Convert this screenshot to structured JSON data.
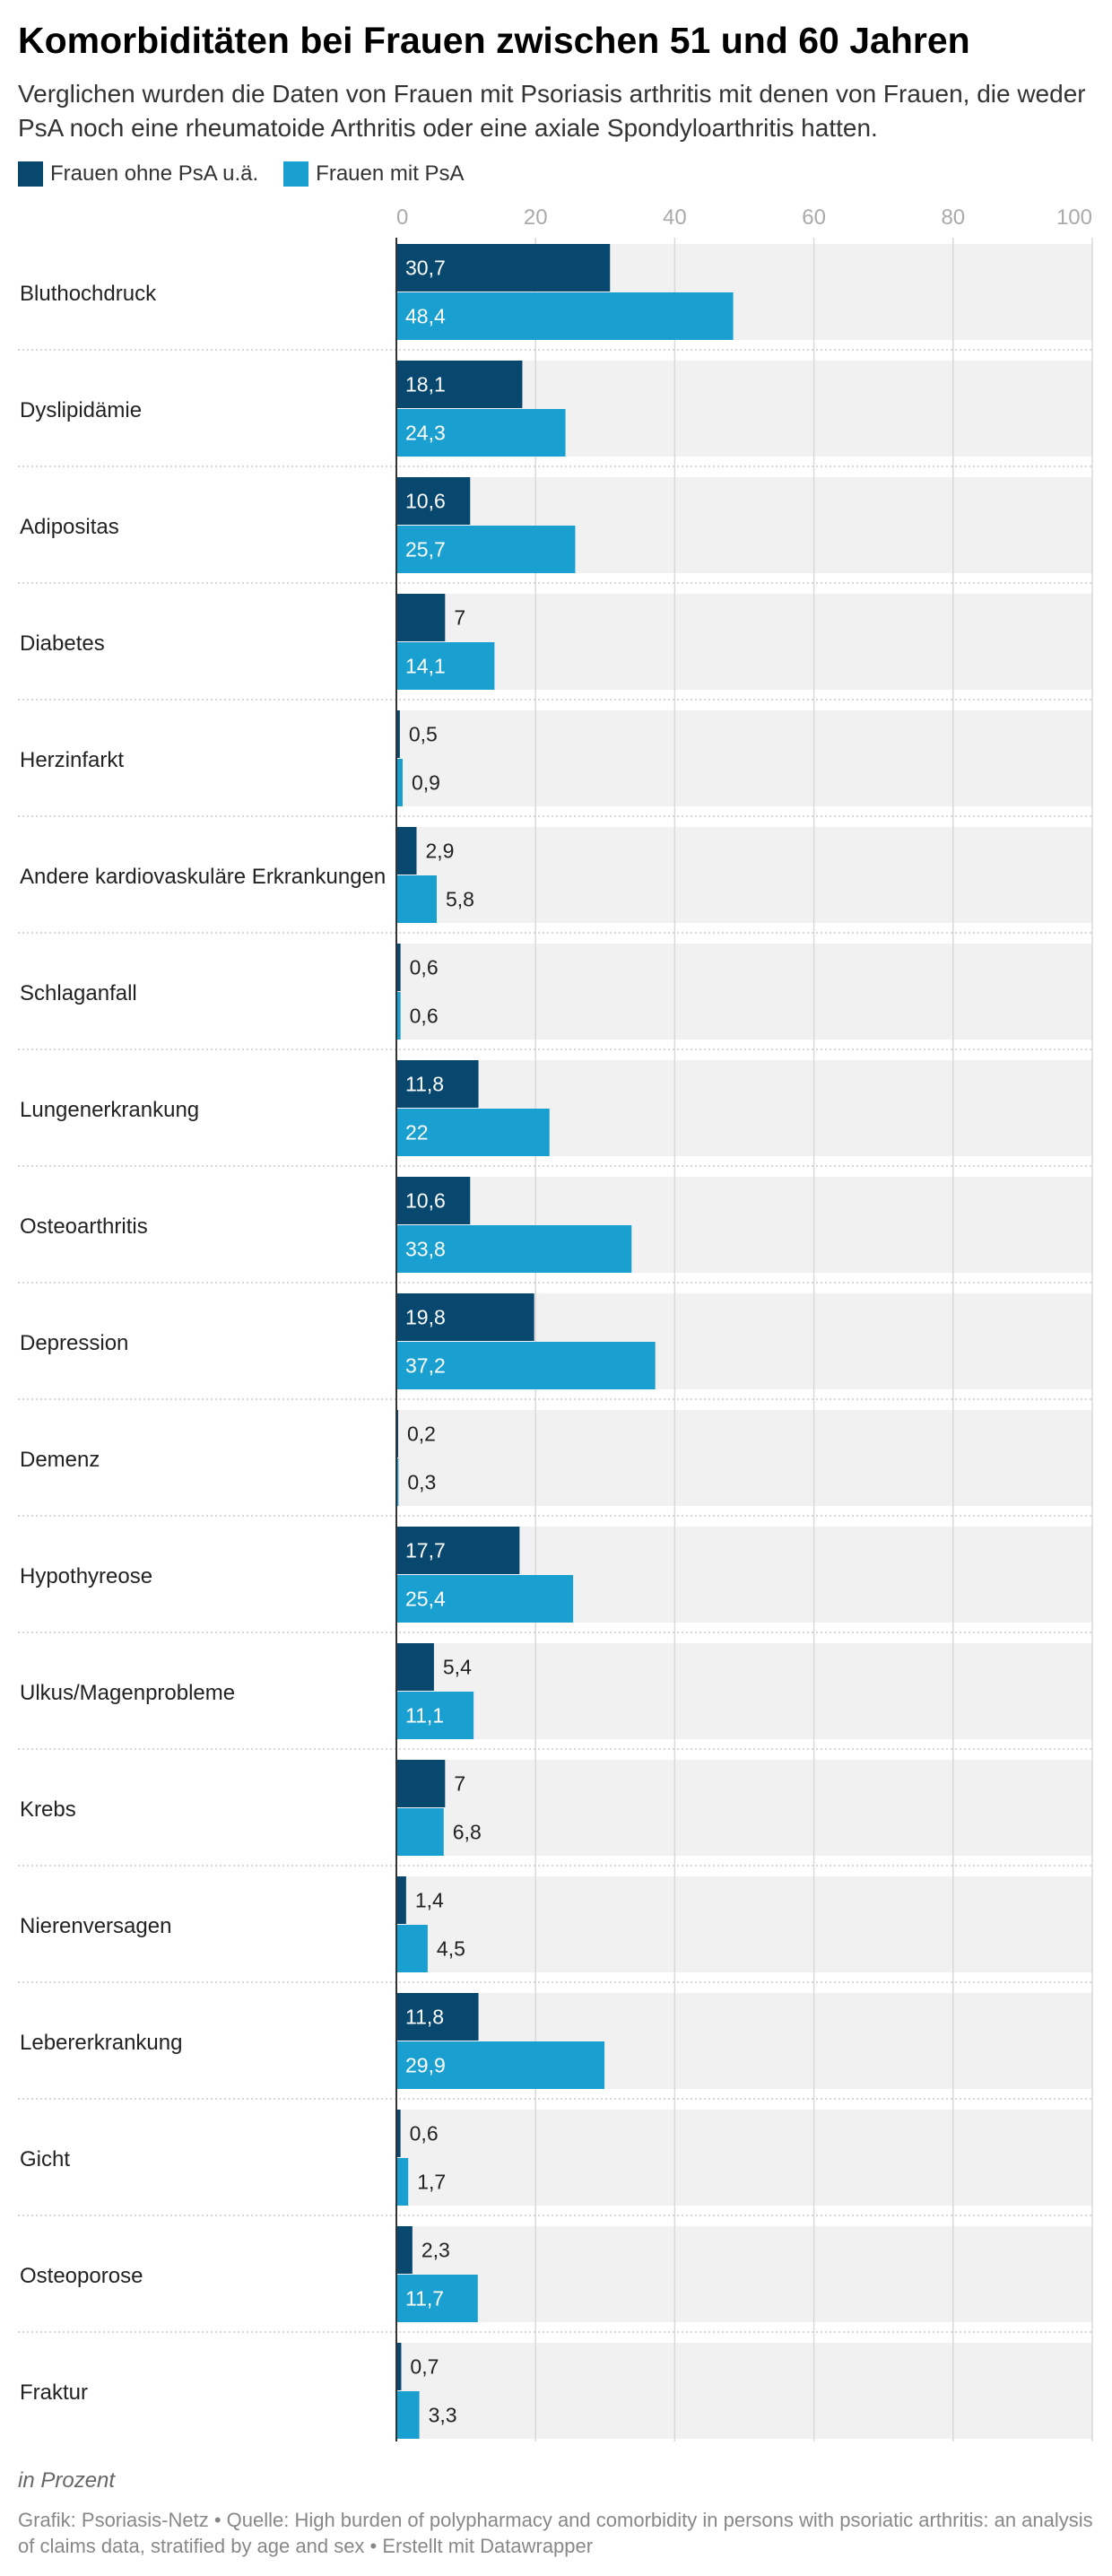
{
  "title": "Komorbiditäten bei Frauen zwischen 51 und 60 Jahren",
  "subtitle": "Verglichen wurden die Daten von Frauen mit Psoriasis arthritis mit denen von Frauen, die weder PsA noch eine rheumatoide Arthritis oder eine axiale Spondyloarthritis hatten.",
  "notes": "in Prozent",
  "source": "Grafik: Psoriasis-Netz • Quelle: High burden of polypharmacy and comorbidity in persons with psoriatic arthritis: an analysis of claims data, stratified by age and sex • Erstellt mit Datawrapper",
  "colors": {
    "series_1": "#08486f",
    "series_2": "#19a0d0",
    "row_background": "#f1f1f1",
    "gridline": "#d9d9d9",
    "axis": "#333333",
    "tick_label": "#aaaaaa",
    "label_inside": "#ffffff",
    "label_outside": "#222222"
  },
  "chart_data": {
    "type": "bar",
    "orientation": "horizontal",
    "unit": "%",
    "xlim": [
      0,
      100
    ],
    "ticks": [
      0,
      20,
      40,
      60,
      80,
      100
    ],
    "tick_labels": [
      "0",
      "20",
      "40",
      "60",
      "80",
      "100"
    ],
    "grid": true,
    "legend_position": "top-left",
    "categories": [
      "Bluthochdruck",
      "Dyslipidämie",
      "Adipositas",
      "Diabetes",
      "Herzinfarkt",
      "Andere kardiovaskuläre Erkrankungen",
      "Schlaganfall",
      "Lungenerkrankung",
      "Osteoarthritis",
      "Depression",
      "Demenz",
      "Hypothyreose",
      "Ulkus/Magenprobleme",
      "Krebs",
      "Nierenversagen",
      "Lebererkrankung",
      "Gicht",
      "Osteoporose",
      "Fraktur"
    ],
    "series": [
      {
        "name": "Frauen ohne PsA u.ä.",
        "values": [
          30.7,
          18.1,
          10.6,
          7,
          0.5,
          2.9,
          0.6,
          11.8,
          10.6,
          19.8,
          0.2,
          17.7,
          5.4,
          7,
          1.4,
          11.8,
          0.6,
          2.3,
          0.7
        ],
        "labels": [
          "30,7",
          "18,1",
          "10,6",
          "7",
          "0,5",
          "2,9",
          "0,6",
          "11,8",
          "10,6",
          "19,8",
          "0,2",
          "17,7",
          "5,4",
          "7",
          "1,4",
          "11,8",
          "0,6",
          "2,3",
          "0,7"
        ]
      },
      {
        "name": "Frauen mit PsA",
        "values": [
          48.4,
          24.3,
          25.7,
          14.1,
          0.9,
          5.8,
          0.6,
          22,
          33.8,
          37.2,
          0.3,
          25.4,
          11.1,
          6.8,
          4.5,
          29.9,
          1.7,
          11.7,
          3.3
        ],
        "labels": [
          "48,4",
          "24,3",
          "25,7",
          "14,1",
          "0,9",
          "5,8",
          "0,6",
          "22",
          "33,8",
          "37,2",
          "0,3",
          "25,4",
          "11,1",
          "6,8",
          "4,5",
          "29,9",
          "1,7",
          "11,7",
          "3,3"
        ]
      }
    ]
  }
}
